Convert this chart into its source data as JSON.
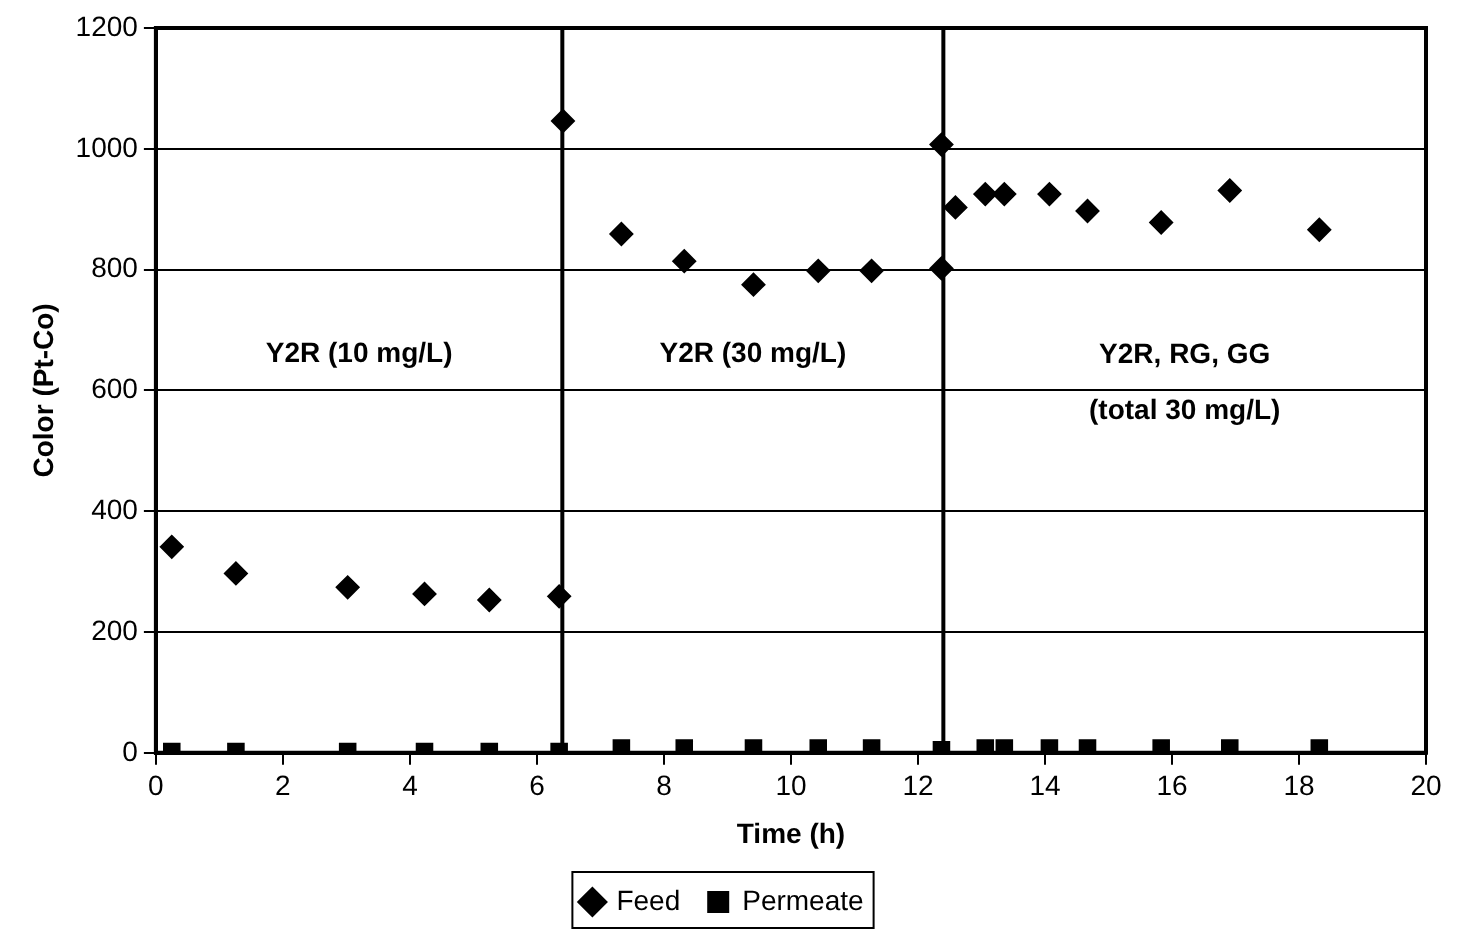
{
  "chart_data": {
    "type": "scatter",
    "xlabel": "Time (h)",
    "ylabel": "Color (Pt-Co)",
    "xlim": [
      0,
      20
    ],
    "xticks": [
      0,
      2,
      4,
      6,
      8,
      10,
      12,
      14,
      16,
      18,
      20
    ],
    "ylim": [
      0,
      1200
    ],
    "yticks": [
      0,
      200,
      400,
      600,
      800,
      1000,
      1200
    ],
    "grid": "y",
    "legend": "bottom",
    "series": [
      {
        "name": "Feed",
        "color": "#000000",
        "marker": "diamond",
        "x": [
          0.25,
          1.26,
          3.02,
          4.23,
          5.25,
          6.35,
          6.41,
          7.33,
          8.32,
          9.41,
          10.43,
          11.27,
          12.37,
          12.37,
          12.59,
          13.06,
          13.36,
          14.07,
          14.67,
          15.83,
          16.91,
          18.32
        ],
        "values": [
          341,
          297,
          274,
          263,
          253,
          259,
          1046,
          859,
          814,
          775,
          798,
          798,
          802,
          1007,
          903,
          925,
          925,
          925,
          897,
          878,
          931,
          866
        ]
      },
      {
        "name": "Permeate",
        "color": "#000000",
        "marker": "square",
        "x": [
          0.25,
          1.26,
          3.02,
          4.23,
          5.25,
          6.35,
          7.33,
          8.32,
          9.41,
          10.43,
          11.27,
          12.37,
          13.06,
          13.36,
          14.07,
          14.67,
          15.83,
          16.91,
          18.32
        ],
        "values": [
          2,
          2,
          2,
          2,
          2,
          2,
          8,
          8,
          8,
          8,
          8,
          5,
          8,
          8,
          8,
          8,
          8,
          8,
          8
        ]
      }
    ],
    "ref_lines": [
      {
        "axis": "x",
        "value": 6.4,
        "color": "#000000"
      },
      {
        "axis": "x",
        "value": 12.4,
        "color": "#000000"
      }
    ],
    "annotations": [
      "Y2R (10 mg/L)",
      "Y2R (30 mg/L)",
      "Y2R, RG, GG\n(total 30 mg/L)"
    ]
  }
}
